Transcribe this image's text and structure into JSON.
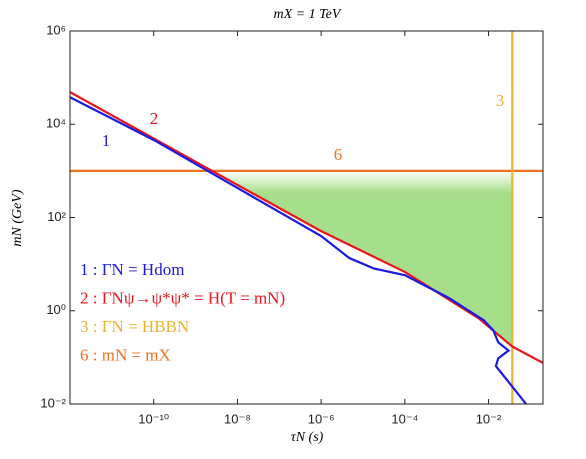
{
  "chart_data": {
    "type": "line",
    "title": "mX = 1 TeV",
    "x_label": "τN (s)",
    "y_label": "mN (GeV)",
    "x_scale": "log",
    "y_scale": "log",
    "xlim": [
      1e-12,
      0.2
    ],
    "ylim": [
      0.01,
      1000000
    ],
    "xticks": [
      {
        "value": 1e-10,
        "label": "10⁻¹⁰"
      },
      {
        "value": 1e-08,
        "label": "10⁻⁸"
      },
      {
        "value": 1e-06,
        "label": "10⁻⁶"
      },
      {
        "value": 0.0001,
        "label": "10⁻⁴"
      },
      {
        "value": 0.01,
        "label": "10⁻²"
      }
    ],
    "yticks": [
      {
        "value": 0.01,
        "label": "10⁻²"
      },
      {
        "value": 1,
        "label": "10⁰"
      },
      {
        "value": 100,
        "label": "10²"
      },
      {
        "value": 10000,
        "label": "10⁴"
      },
      {
        "value": 1000000,
        "label": "10⁶"
      }
    ],
    "legend": "lower left",
    "series": [
      {
        "name": "1 : ΓN = Hdom",
        "color": "#1a1ae0",
        "x": [
          1e-12,
          1e-10,
          1e-08,
          1e-06,
          4.7e-06,
          1.8e-05,
          0.0001,
          0.0011,
          0.0076,
          0.013,
          0.017,
          0.03,
          0.017,
          0.015,
          0.079
        ],
        "values": [
          38000,
          4600,
          430,
          40,
          13.5,
          8.1,
          5.8,
          1.9,
          0.63,
          0.38,
          0.21,
          0.14,
          0.095,
          0.065,
          0.01
        ]
      },
      {
        "name": "2 : ΓNψ→ψ*ψ* = H(T = mN)",
        "color": "#e8141e",
        "x": [
          1e-12,
          1e-08,
          1e-06,
          0.0001,
          0.0058,
          0.037,
          0.2
        ],
        "values": [
          49000,
          500,
          51,
          6.8,
          0.69,
          0.17,
          0.076
        ]
      },
      {
        "name": "3 : ΓN = HBBN",
        "color": "#efb030",
        "x": [
          0.037,
          0.037
        ],
        "values": [
          0.01,
          1000000
        ]
      },
      {
        "name": "6 : mN = mX",
        "color": "#f07020",
        "x": [
          1e-12,
          0.2
        ],
        "values": [
          1000,
          1000
        ]
      }
    ],
    "annotations": [
      "1",
      "2",
      "3",
      "6"
    ],
    "region_color": "#a6de8a"
  }
}
